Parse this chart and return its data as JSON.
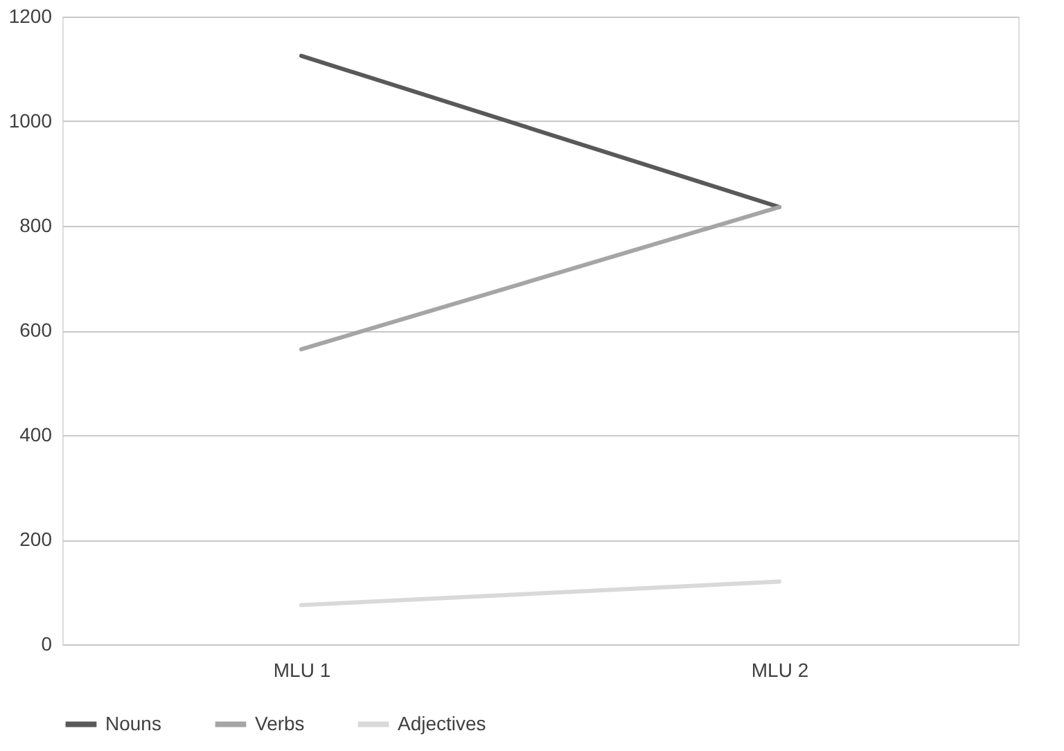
{
  "chart_data": {
    "type": "line",
    "categories": [
      "MLU 1",
      "MLU 2"
    ],
    "series": [
      {
        "name": "Nouns",
        "color": "#595959",
        "values": [
          1125,
          836
        ]
      },
      {
        "name": "Verbs",
        "color": "#a5a5a5",
        "values": [
          564,
          836
        ]
      },
      {
        "name": "Adjectives",
        "color": "#d9d9d9",
        "values": [
          75,
          120
        ]
      }
    ],
    "ylim": [
      0,
      1200
    ],
    "yticks": [
      0,
      200,
      400,
      600,
      800,
      1000,
      1200
    ],
    "grid": "y",
    "legend": "bottom",
    "marker": "none",
    "line_style": "solid"
  }
}
